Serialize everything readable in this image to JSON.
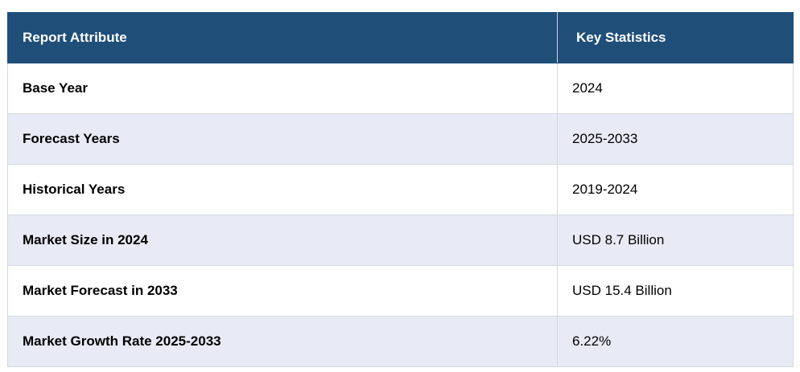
{
  "table": {
    "headers": [
      "Report Attribute",
      "Key Statistics"
    ],
    "rows": [
      {
        "attribute": "Base Year",
        "value": "2024"
      },
      {
        "attribute": "Forecast Years",
        "value": "2025-2033"
      },
      {
        "attribute": "Historical Years",
        "value": "2019-2024"
      },
      {
        "attribute": "Market Size in 2024",
        "value": "USD 8.7 Billion"
      },
      {
        "attribute": "Market Forecast in 2033",
        "value": "USD 15.4 Billion"
      },
      {
        "attribute": "Market Growth Rate 2025-2033",
        "value": "6.22%"
      }
    ]
  },
  "colors": {
    "header_bg": "#1f4e79",
    "header_text": "#ffffff",
    "row_alt_bg": "#e8eaf6",
    "row_bg": "#ffffff"
  }
}
